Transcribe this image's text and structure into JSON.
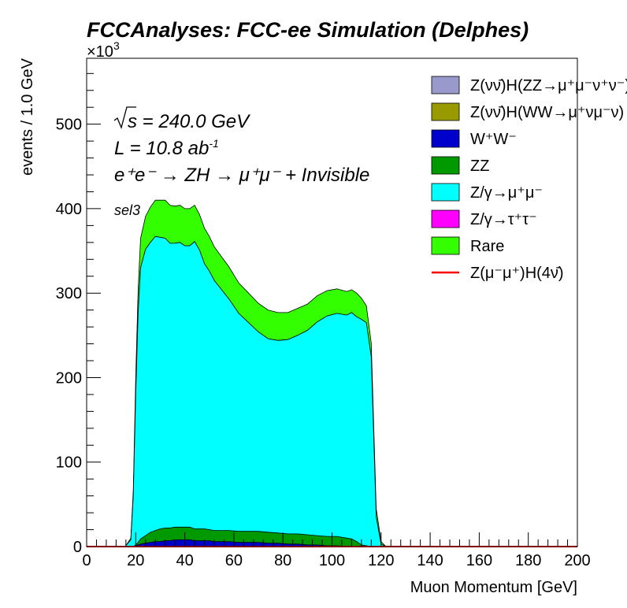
{
  "chart_data": {
    "type": "area",
    "title": "FCCAnalyses: FCC-ee Simulation (Delphes)",
    "xlabel": "Muon Momentum [GeV]",
    "ylabel": "events / 1.0 GeV",
    "y_multiplier_label": "×10",
    "y_multiplier_exp": "3",
    "xlim": [
      0,
      200
    ],
    "ylim": [
      0,
      578
    ],
    "x_ticks": [
      0,
      20,
      40,
      60,
      80,
      100,
      120,
      140,
      160,
      180,
      200
    ],
    "y_ticks": [
      0,
      100,
      200,
      300,
      400,
      500
    ],
    "grid": false,
    "legend_position": "top-right",
    "annotations": {
      "sqrt_s": "s = 240.0 GeV",
      "lumi": "L = 10.8 ab",
      "lumi_exp": "-1",
      "process": "e⁺e⁻ → ZH → μ⁺μ⁻ + Invisible",
      "selection": "sel3"
    },
    "x": [
      16,
      18,
      19,
      20,
      21,
      22,
      24,
      26,
      28,
      30,
      32,
      34,
      36,
      38,
      40,
      42,
      44,
      46,
      48,
      50,
      52,
      55,
      58,
      62,
      66,
      70,
      74,
      78,
      82,
      86,
      90,
      94,
      98,
      102,
      106,
      108,
      110,
      112,
      114,
      116,
      118,
      120,
      122
    ],
    "series": [
      {
        "name": "Z(νν̄)H(ZZ→μ⁺μ⁻ν⁺ν⁻)",
        "color": "#9999cc",
        "values": [
          0,
          0,
          0,
          0,
          0,
          0,
          0,
          0,
          0,
          0,
          0,
          0,
          0,
          0,
          0,
          0,
          0,
          0,
          0,
          0,
          0,
          0,
          0,
          0,
          0,
          0,
          0,
          0,
          0,
          0,
          0,
          0,
          0,
          0,
          0,
          0,
          0,
          0,
          0,
          0,
          0,
          0,
          0
        ]
      },
      {
        "name": "Z(νν̄)H(WW→μ⁺νμ⁻ν)",
        "color": "#999900",
        "values": [
          0,
          0,
          0,
          0,
          0,
          0,
          0,
          0,
          0,
          0,
          0,
          0,
          0,
          0,
          0,
          0,
          0,
          0,
          0,
          0,
          0,
          0,
          0,
          0,
          0,
          0,
          0,
          0,
          0,
          0,
          0,
          0,
          0,
          0,
          0,
          0,
          0,
          0,
          0,
          0,
          0,
          0,
          0
        ]
      },
      {
        "name": "W⁺W⁻",
        "color": "#0000cc",
        "values": [
          0,
          0,
          0,
          1,
          2,
          3,
          4,
          5,
          6,
          6,
          7,
          7,
          8,
          8,
          8,
          8,
          7,
          7,
          7,
          7,
          6,
          6,
          6,
          5,
          5,
          5,
          4,
          4,
          3,
          3,
          2,
          2,
          1,
          1,
          0,
          0,
          0,
          0,
          0,
          0,
          0,
          0,
          0
        ]
      },
      {
        "name": "ZZ",
        "color": "#009900",
        "values": [
          0,
          0,
          0,
          1,
          3,
          6,
          9,
          12,
          13,
          15,
          15,
          15,
          15,
          15,
          15,
          15,
          14,
          14,
          14,
          13,
          13,
          13,
          13,
          13,
          13,
          13,
          13,
          12,
          12,
          12,
          12,
          11,
          11,
          11,
          10,
          9,
          6,
          2,
          1,
          0,
          0,
          0,
          0
        ]
      },
      {
        "name": "Z/γ→μ⁺μ⁻",
        "color": "#00ffff",
        "values": [
          1,
          8,
          60,
          178,
          272,
          321,
          339,
          343,
          348,
          345,
          343,
          337,
          336,
          337,
          333,
          333,
          340,
          330,
          314,
          306,
          296,
          285,
          274,
          258,
          247,
          236,
          229,
          228,
          230,
          235,
          242,
          253,
          261,
          264,
          264,
          268,
          266,
          267,
          264,
          225,
          35,
          3,
          0
        ]
      },
      {
        "name": "Z/γ→τ⁺τ⁻",
        "color": "#ff00ff",
        "values": [
          0,
          0,
          0,
          0,
          0,
          0,
          0,
          0,
          0,
          0,
          0,
          0,
          0,
          0,
          0,
          0,
          0,
          0,
          0,
          0,
          0,
          0,
          0,
          0,
          0,
          0,
          0,
          0,
          0,
          0,
          0,
          0,
          0,
          0,
          0,
          0,
          0,
          0,
          0,
          0,
          0,
          0,
          0
        ]
      },
      {
        "name": "Rare",
        "color": "#33ff00",
        "values": [
          0,
          2,
          6,
          20,
          28,
          35,
          39,
          42,
          43,
          44,
          45,
          45,
          44,
          44,
          44,
          44,
          43,
          42,
          42,
          41,
          40,
          39,
          38,
          36,
          35,
          34,
          34,
          33,
          32,
          32,
          31,
          31,
          30,
          29,
          28,
          27,
          28,
          25,
          20,
          16,
          10,
          3,
          0
        ]
      },
      {
        "name": "Z(μ⁻μ⁺)H(4ν̄)",
        "color": "#ff0000",
        "style": "line",
        "values": [
          0,
          0,
          0,
          0,
          0,
          0,
          0,
          0,
          0,
          0,
          0,
          0,
          0,
          0,
          0,
          0,
          0,
          0,
          0,
          0,
          0,
          0,
          0,
          0,
          0,
          0,
          0,
          0,
          0,
          0,
          0,
          0,
          0,
          0,
          0,
          0,
          0,
          0,
          0,
          0,
          0,
          0,
          0
        ]
      }
    ]
  }
}
